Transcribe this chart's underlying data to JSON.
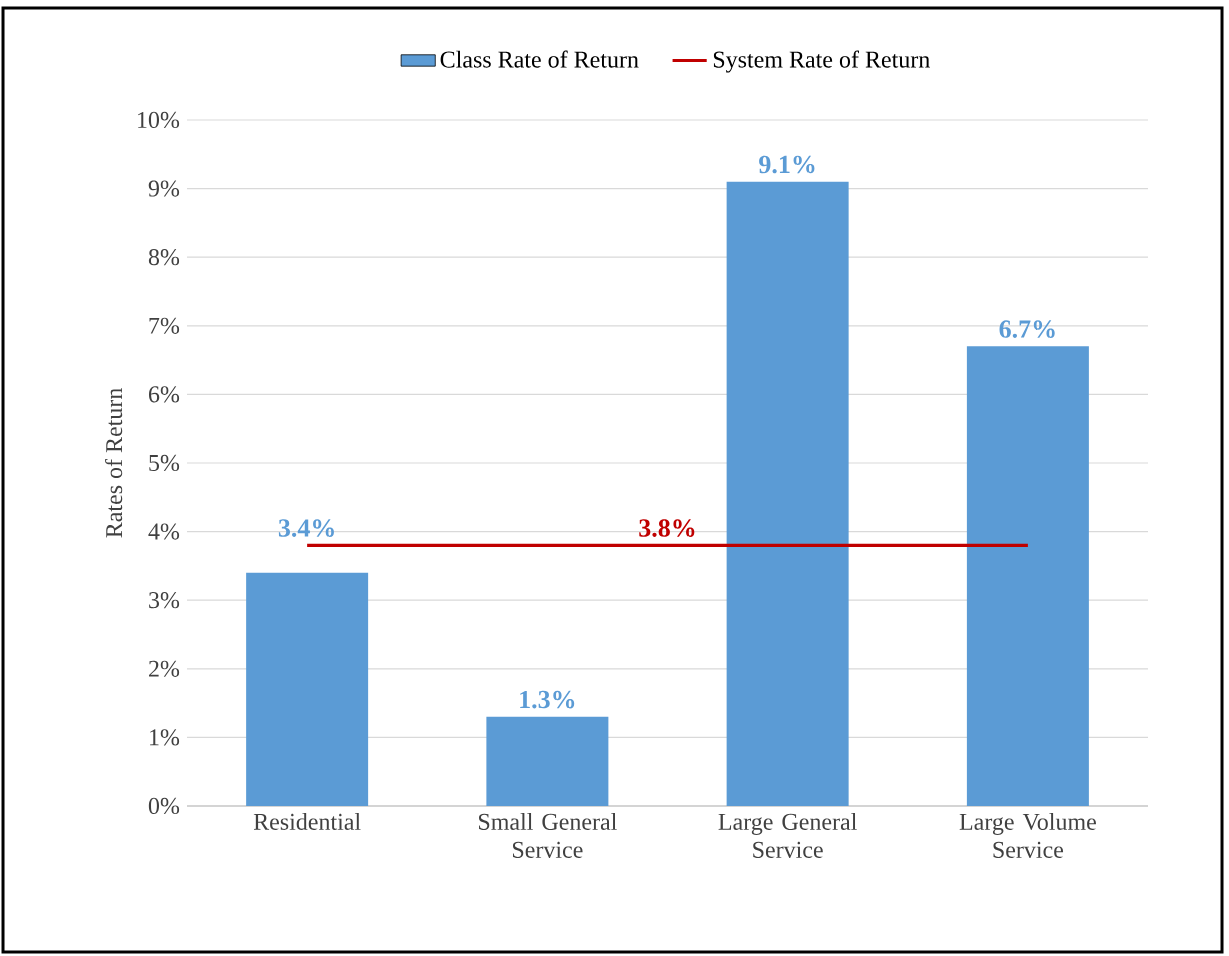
{
  "chart_data": {
    "type": "bar",
    "ylabel": "Rates of Return",
    "categories": [
      "Residential",
      "Small General Service",
      "Large General Service",
      "Large Volume Service"
    ],
    "series": [
      {
        "name": "Class Rate of Return",
        "color": "#5b9bd5",
        "values": [
          3.4,
          1.3,
          9.1,
          6.7
        ],
        "value_labels": [
          "3.4%",
          "1.3%",
          "9.1%",
          "6.7%"
        ]
      },
      {
        "name": "System Rate of Return",
        "type": "line",
        "color": "#c00000",
        "values": [
          3.8,
          3.8,
          3.8,
          3.8
        ]
      }
    ],
    "annotations": [
      {
        "text": "3.8%",
        "y": 3.8
      }
    ],
    "ylim": [
      0,
      10
    ],
    "yticks": [
      {
        "value": 0,
        "label": "0%"
      },
      {
        "value": 1,
        "label": "1%"
      },
      {
        "value": 2,
        "label": "2%"
      },
      {
        "value": 3,
        "label": "3%"
      },
      {
        "value": 4,
        "label": "4%"
      },
      {
        "value": 5,
        "label": "5%"
      },
      {
        "value": 6,
        "label": "6%"
      },
      {
        "value": 7,
        "label": "7%"
      },
      {
        "value": 8,
        "label": "8%"
      },
      {
        "value": 9,
        "label": "9%"
      },
      {
        "value": 10,
        "label": "10%"
      }
    ],
    "grid": "y",
    "legend": "top"
  }
}
